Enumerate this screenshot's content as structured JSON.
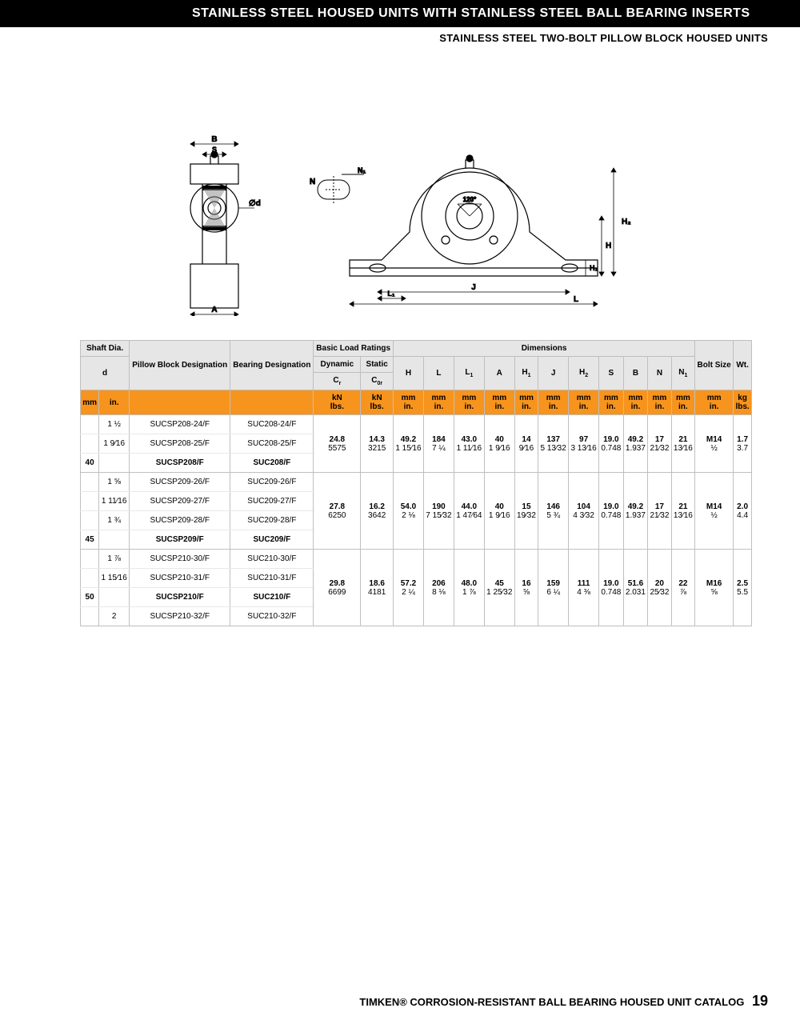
{
  "header": {
    "title": "STAINLESS STEEL HOUSED UNITS WITH STAINLESS STEEL BALL BEARING INSERTS",
    "subtitle": "STAINLESS STEEL TWO-BOLT PILLOW BLOCK HOUSED UNITS"
  },
  "table": {
    "header": {
      "shaft": "Shaft Dia.",
      "d": "d",
      "pillow": "Pillow Block Designation",
      "bearing": "Bearing Designation",
      "blr": "Basic Load Ratings",
      "dyn": "Dynamic",
      "stat": "Static",
      "cr": "Cr",
      "cor": "C0r",
      "dims": "Dimensions",
      "H": "H",
      "L": "L",
      "L1": "L1",
      "A": "A",
      "H1": "H1",
      "J": "J",
      "H2": "H2",
      "S": "S",
      "B": "B",
      "N": "N",
      "N1": "N1",
      "bolt": "Bolt Size",
      "wt": "Wt."
    },
    "units": {
      "mm": "mm",
      "in": "in.",
      "kn": "kN",
      "lbs": "lbs.",
      "kg": "kg"
    },
    "rows": [
      {
        "mm": "",
        "in": "1 ½",
        "pb": "SUCSP208-24/F",
        "bg": "SUC208-24/F",
        "topedge": true
      },
      {
        "mm": "",
        "in": "1 9⁄16",
        "pb": "SUCSP208-25/F",
        "bg": "SUC208-25/F"
      },
      {
        "mm": "40",
        "in": "",
        "pb": "SUCSP208/F",
        "bg": "SUC208/F",
        "bold": true,
        "botdiv": true,
        "vals": {
          "cr_kn": "24.8",
          "cr_lb": "5575",
          "cor_kn": "14.3",
          "cor_lb": "3215",
          "H_mm": "49.2",
          "H_in": "1 15⁄16",
          "L_mm": "184",
          "L_in": "7 ¼",
          "L1_mm": "43.0",
          "L1_in": "1 11⁄16",
          "A_mm": "40",
          "A_in": "1 9⁄16",
          "H1_mm": "14",
          "H1_in": "9⁄16",
          "J_mm": "137",
          "J_in": "5 13⁄32",
          "H2_mm": "97",
          "H2_in": "3 13⁄16",
          "S_mm": "19.0",
          "S_in": "0.748",
          "B_mm": "49.2",
          "B_in": "1.937",
          "N_mm": "17",
          "N_in": "21⁄32",
          "N1_mm": "21",
          "N1_in": "13⁄16",
          "bolt_mm": "M14",
          "bolt_in": "½",
          "wt_kg": "1.7",
          "wt_lb": "3.7"
        }
      },
      {
        "mm": "",
        "in": "1 ⅝",
        "pb": "SUCSP209-26/F",
        "bg": "SUC209-26/F"
      },
      {
        "mm": "",
        "in": "1 11⁄16",
        "pb": "SUCSP209-27/F",
        "bg": "SUC209-27/F"
      },
      {
        "mm": "",
        "in": "1 ¾",
        "pb": "SUCSP209-28/F",
        "bg": "SUC209-28/F"
      },
      {
        "mm": "45",
        "in": "",
        "pb": "SUCSP209/F",
        "bg": "SUC209/F",
        "bold": true,
        "botdiv": true,
        "vals": {
          "cr_kn": "27.8",
          "cr_lb": "6250",
          "cor_kn": "16.2",
          "cor_lb": "3642",
          "H_mm": "54.0",
          "H_in": "2 ⅛",
          "L_mm": "190",
          "L_in": "7 15⁄32",
          "L1_mm": "44.0",
          "L1_in": "1 47⁄64",
          "A_mm": "40",
          "A_in": "1 9⁄16",
          "H1_mm": "15",
          "H1_in": "19⁄32",
          "J_mm": "146",
          "J_in": "5 ¾",
          "H2_mm": "104",
          "H2_in": "4 3⁄32",
          "S_mm": "19.0",
          "S_in": "0.748",
          "B_mm": "49.2",
          "B_in": "1.937",
          "N_mm": "17",
          "N_in": "21⁄32",
          "N1_mm": "21",
          "N1_in": "13⁄16",
          "bolt_mm": "M14",
          "bolt_in": "½",
          "wt_kg": "2.0",
          "wt_lb": "4.4"
        }
      },
      {
        "mm": "",
        "in": "1 ⅞",
        "pb": "SUCSP210-30/F",
        "bg": "SUC210-30/F"
      },
      {
        "mm": "",
        "in": "1 15⁄16",
        "pb": "SUCSP210-31/F",
        "bg": "SUC210-31/F"
      },
      {
        "mm": "50",
        "in": "",
        "pb": "SUCSP210/F",
        "bg": "SUC210/F",
        "bold": true,
        "vals": {
          "cr_kn": "29.8",
          "cr_lb": "6699",
          "cor_kn": "18.6",
          "cor_lb": "4181",
          "H_mm": "57.2",
          "H_in": "2 ¼",
          "L_mm": "206",
          "L_in": "8 ⅛",
          "L1_mm": "48.0",
          "L1_in": "1 ⅞",
          "A_mm": "45",
          "A_in": "1 25⁄32",
          "H1_mm": "16",
          "H1_in": "⅝",
          "J_mm": "159",
          "J_in": "6 ¼",
          "H2_mm": "111",
          "H2_in": "4 ⅜",
          "S_mm": "19.0",
          "S_in": "0.748",
          "B_mm": "51.6",
          "B_in": "2.031",
          "N_mm": "20",
          "N_in": "25⁄32",
          "N1_mm": "22",
          "N1_in": "⅞",
          "bolt_mm": "M16",
          "bolt_in": "⅝",
          "wt_kg": "2.5",
          "wt_lb": "5.5"
        }
      },
      {
        "mm": "",
        "in": "2",
        "pb": "SUCSP210-32/F",
        "bg": "SUC210-32/F",
        "botedge": true
      }
    ]
  },
  "footer": {
    "text": "TIMKEN® CORROSION-RESISTANT BALL BEARING HOUSED UNIT CATALOG",
    "page": "19"
  },
  "colors": {
    "orange": "#f7941d",
    "black": "#000000",
    "grey": "#e6e6e6",
    "border": "#bfbfbf"
  }
}
